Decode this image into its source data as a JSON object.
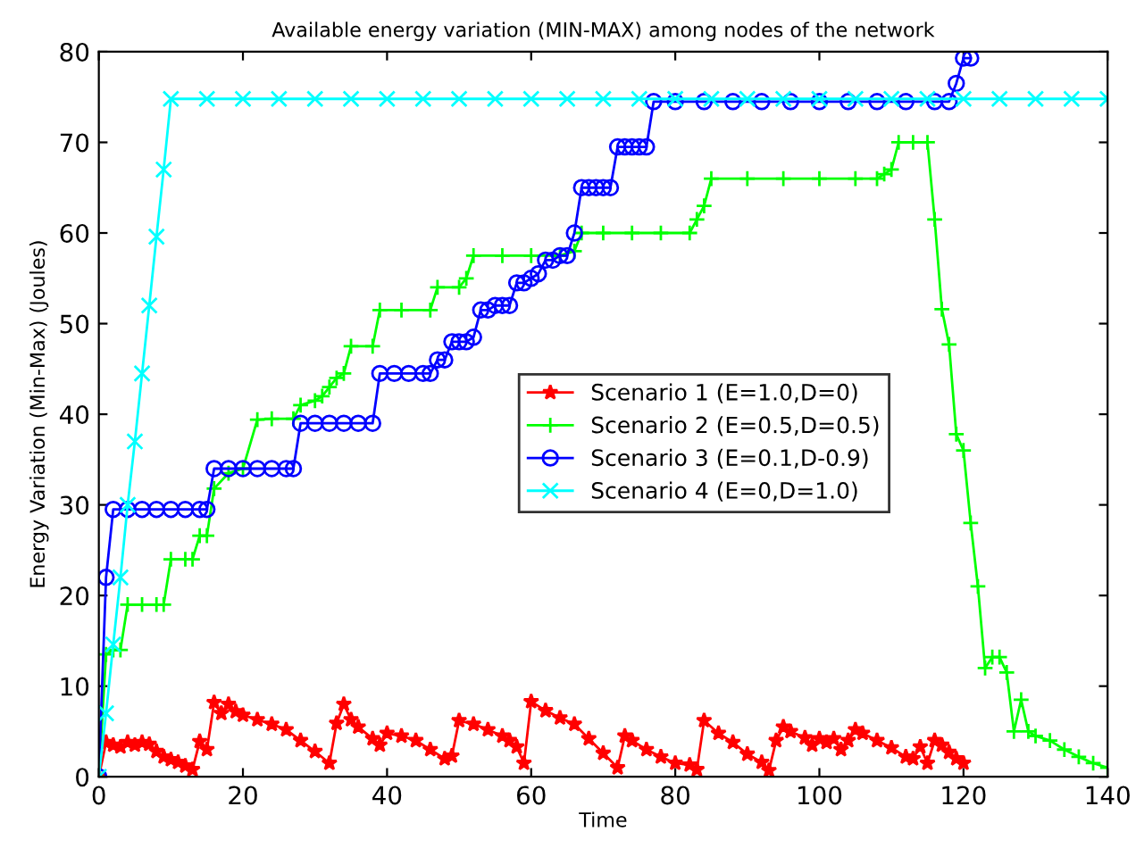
{
  "chart_data": {
    "type": "line",
    "title": "Available energy variation (MIN-MAX) among nodes of the network",
    "xlabel": "Time",
    "ylabel": "Energy Variation (Min-Max) (Joules)",
    "xlim": [
      0,
      140
    ],
    "ylim": [
      0,
      80
    ],
    "xticks": [
      0,
      20,
      40,
      60,
      80,
      100,
      120,
      140
    ],
    "yticks": [
      0,
      10,
      20,
      30,
      40,
      50,
      60,
      70,
      80
    ],
    "grid": false,
    "legend": "center right",
    "line_style": "solid",
    "series": [
      {
        "name": "Scenario 1 (E=1.0,D=0)",
        "color": "#ff0000",
        "marker": "star",
        "x": [
          0,
          1,
          2,
          3,
          4,
          5,
          6,
          7,
          8,
          9,
          10,
          11,
          12,
          13,
          14,
          15,
          16,
          17,
          18,
          19,
          20,
          22,
          24,
          26,
          28,
          30,
          32,
          33,
          34,
          35,
          36,
          38,
          39,
          40,
          42,
          44,
          46,
          48,
          49,
          50,
          52,
          54,
          56,
          57,
          58,
          59,
          60,
          62,
          64,
          66,
          68,
          70,
          72,
          73,
          74,
          76,
          78,
          80,
          82,
          83,
          84,
          86,
          88,
          90,
          92,
          93,
          94,
          95,
          96,
          98,
          99,
          100,
          101,
          102,
          103,
          104,
          105,
          106,
          108,
          110,
          112,
          113,
          114,
          115,
          116,
          117,
          118,
          119,
          120
        ],
        "values": [
          0,
          3.8,
          3.5,
          3.3,
          3.8,
          3.5,
          3.8,
          3.6,
          2.8,
          2.2,
          1.9,
          1.6,
          1.2,
          0.8,
          3.9,
          3,
          8.2,
          7,
          8,
          7.2,
          6.8,
          6.3,
          5.8,
          5.2,
          4,
          2.8,
          1.5,
          5.9,
          8,
          6.3,
          5.5,
          4.2,
          3.5,
          4.8,
          4.5,
          4,
          3,
          2,
          2.3,
          6.2,
          5.8,
          5.2,
          4.5,
          4,
          3.3,
          1.5,
          8.3,
          7.3,
          6.5,
          5.8,
          4.2,
          2.6,
          1,
          4.5,
          4,
          3,
          2.2,
          1.5,
          1.3,
          0.8,
          6.2,
          4.8,
          3.8,
          2.5,
          1.6,
          0.7,
          4,
          5.5,
          5,
          4.3,
          3.5,
          4.2,
          3.8,
          4.2,
          3,
          4,
          5.2,
          4.8,
          4,
          3.2,
          2.2,
          2,
          3.3,
          1.5,
          4,
          3.5,
          2.7,
          2,
          1.5
        ]
      },
      {
        "name": "Scenario 2 (E=0.5,D=0.5)",
        "color": "#00ff00",
        "marker": "cross",
        "x": [
          0,
          1,
          2,
          3,
          4,
          6,
          8,
          9,
          10,
          12,
          13,
          14,
          15,
          16,
          18,
          20,
          22,
          24,
          27,
          28,
          30,
          31,
          32,
          33,
          34,
          35,
          38,
          39,
          42,
          46,
          47,
          50,
          51,
          52,
          56,
          60,
          64,
          66,
          67,
          70,
          74,
          78,
          82,
          83,
          84,
          85,
          90,
          95,
          100,
          105,
          108,
          109,
          110,
          111,
          113,
          115,
          116,
          117,
          118,
          119,
          120,
          121,
          122,
          123,
          124,
          125,
          126,
          127,
          128,
          129,
          130,
          132,
          134,
          136,
          138,
          140
        ],
        "values": [
          0,
          13.5,
          14,
          14,
          19,
          19,
          19,
          19,
          24,
          24,
          24,
          26.6,
          26.6,
          31.8,
          33.5,
          34,
          39.4,
          39.5,
          39.5,
          41,
          41.5,
          42,
          43,
          44,
          44.5,
          47.5,
          47.5,
          51.5,
          51.5,
          51.5,
          54,
          54,
          55,
          57.5,
          57.5,
          57.5,
          57.5,
          58,
          60,
          60,
          60,
          60,
          60,
          61.5,
          63,
          66,
          66,
          66,
          66,
          66,
          66,
          66.5,
          67,
          70,
          70,
          70,
          61.5,
          51.6,
          47.7,
          37.8,
          36,
          28,
          21,
          12,
          13.2,
          13.2,
          11.5,
          5,
          8.5,
          5,
          4.5,
          4,
          3,
          2.2,
          1.5,
          1
        ]
      },
      {
        "name": "Scenario 3 (E=0.1,D-0.9)",
        "color": "#0000ff",
        "marker": "circle",
        "x": [
          0,
          1,
          2,
          4,
          6,
          8,
          10,
          12,
          14,
          15,
          16,
          18,
          20,
          22,
          24,
          26,
          27,
          28,
          30,
          32,
          34,
          36,
          38,
          39,
          41,
          43,
          45,
          46,
          47,
          48,
          49,
          50,
          51,
          52,
          53,
          54,
          55,
          56,
          57,
          58,
          59,
          60,
          61,
          62,
          63,
          64,
          65,
          66,
          67,
          68,
          69,
          70,
          71,
          72,
          73,
          74,
          75,
          76,
          77,
          80,
          84,
          88,
          92,
          96,
          100,
          104,
          108,
          112,
          116,
          118,
          119,
          120,
          121
        ],
        "values": [
          0,
          22,
          29.5,
          29.5,
          29.5,
          29.5,
          29.5,
          29.5,
          29.5,
          29.5,
          34,
          34,
          34,
          34,
          34,
          34,
          34,
          39,
          39,
          39,
          39,
          39,
          39,
          44.5,
          44.5,
          44.5,
          44.5,
          44.5,
          46,
          46,
          48,
          48,
          48,
          48.5,
          51.5,
          51.5,
          52,
          52,
          52,
          54.5,
          54.5,
          55,
          55.5,
          57,
          57,
          57.5,
          57.5,
          60,
          65,
          65,
          65,
          65,
          65,
          69.5,
          69.5,
          69.5,
          69.5,
          69.5,
          74.5,
          74.5,
          74.5,
          74.5,
          74.5,
          74.5,
          74.5,
          74.5,
          74.5,
          74.5,
          74.5,
          74.5,
          76.5,
          79.3,
          79.3
        ]
      },
      {
        "name": "Scenario 4 (E=0,D=1.0)",
        "color": "#00ffff",
        "marker": "x",
        "x": [
          0,
          1,
          2,
          3,
          4,
          5,
          6,
          7,
          8,
          9,
          10,
          15,
          20,
          25,
          30,
          35,
          40,
          45,
          50,
          55,
          60,
          65,
          70,
          75,
          80,
          85,
          90,
          95,
          100,
          105,
          110,
          115,
          120,
          125,
          130,
          135,
          140
        ],
        "values": [
          0,
          7,
          14.6,
          22,
          30,
          37,
          44.5,
          52,
          59.6,
          67,
          74.8,
          74.8,
          74.8,
          74.8,
          74.8,
          74.8,
          74.8,
          74.8,
          74.8,
          74.8,
          74.8,
          74.8,
          74.8,
          74.8,
          74.8,
          74.8,
          74.8,
          74.8,
          74.8,
          74.8,
          74.8,
          74.8,
          74.8,
          74.8,
          74.8,
          74.8,
          74.8
        ]
      }
    ]
  }
}
